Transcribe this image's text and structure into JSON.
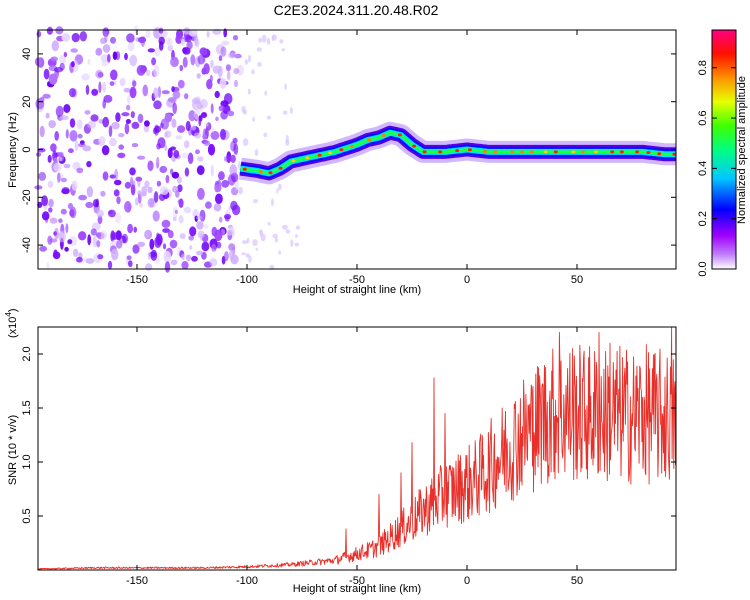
{
  "title": "C2E3.2024.311.20.48.R02",
  "chart_data": [
    {
      "type": "heatmap",
      "xlabel": "Height of straight line (km)",
      "ylabel": "Frequency (Hz)",
      "xlim": [
        -195,
        95
      ],
      "ylim": [
        -50,
        50
      ],
      "xticks": [
        -150,
        -100,
        -50,
        0,
        50
      ],
      "yticks": [
        -40,
        -20,
        0,
        20,
        40
      ],
      "xtick_labels": [
        "-150",
        "-100",
        "-50",
        "0",
        "50"
      ],
      "ytick_labels": [
        "-40",
        "-20",
        "0",
        "20",
        "40"
      ],
      "colorbar": {
        "label": "Normalized spectral amplitude",
        "range": [
          0,
          0.95
        ],
        "ticks": [
          0.0,
          0.2,
          0.4,
          0.6,
          0.8
        ],
        "tick_labels": [
          "0.0",
          "0.2",
          "0.4",
          "0.6",
          "0.8"
        ],
        "colormap": [
          "#ffffff",
          "#a000ff",
          "#0000ff",
          "#00ffff",
          "#00ff00",
          "#ffff00",
          "#ff8000",
          "#ff0000",
          "#ff0080"
        ]
      },
      "ridge": {
        "x": [
          -103,
          -95,
          -90,
          -85,
          -80,
          -70,
          -60,
          -50,
          -45,
          -40,
          -35,
          -30,
          -25,
          -20,
          -10,
          0,
          10,
          20,
          30,
          40,
          50,
          60,
          70,
          80,
          90,
          95
        ],
        "frequency": [
          -8,
          -9,
          -10,
          -8,
          -5,
          -3,
          -1,
          2,
          4,
          5,
          7,
          6,
          2,
          -1,
          -1,
          0,
          -1,
          -1,
          -1,
          -1,
          -1,
          -1,
          -1,
          -1,
          -2,
          -2
        ]
      },
      "noise_region": [
        -195,
        -103
      ]
    },
    {
      "type": "line",
      "xlabel": "Height of straight line (km)",
      "ylabel": "SNR (10 * v/v)",
      "multiplier_label": "(x10",
      "multiplier_exp": "4",
      "multiplier_close": ")",
      "xlim": [
        -195,
        95
      ],
      "ylim": [
        0,
        2.25
      ],
      "xticks": [
        -150,
        -100,
        -50,
        0,
        50
      ],
      "yticks": [
        0.5,
        1.0,
        1.5,
        2.0
      ],
      "xtick_labels": [
        "-150",
        "-100",
        "-50",
        "0",
        "50"
      ],
      "ytick_labels": [
        "0.5",
        "1.0",
        "1.5",
        "2.0"
      ],
      "color": "#e8302a",
      "series": [
        {
          "x": [
            -195,
            -170,
            -150,
            -120,
            -100,
            -90,
            -80,
            -70,
            -60,
            -55,
            -50,
            -45,
            -40,
            -35,
            -30,
            -25,
            -20,
            -15,
            -10,
            -5,
            0,
            5,
            10,
            15,
            20,
            25,
            30,
            35,
            40,
            45,
            50,
            55,
            60,
            65,
            70,
            75,
            80,
            85,
            90,
            95
          ],
          "values": [
            0.01,
            0.02,
            0.02,
            0.02,
            0.03,
            0.04,
            0.05,
            0.07,
            0.09,
            0.12,
            0.15,
            0.18,
            0.22,
            0.3,
            0.38,
            0.45,
            0.55,
            0.62,
            0.7,
            0.75,
            0.8,
            0.85,
            0.95,
            1.05,
            1.15,
            1.25,
            1.3,
            1.4,
            1.45,
            1.45,
            1.45,
            1.45,
            1.45,
            1.42,
            1.45,
            1.42,
            1.45,
            1.42,
            1.42,
            1.4
          ]
        }
      ],
      "spikes": [
        {
          "x": -55,
          "y": 0.38
        },
        {
          "x": -40,
          "y": 0.7
        },
        {
          "x": -30,
          "y": 0.9
        },
        {
          "x": -25,
          "y": 1.18
        },
        {
          "x": -15,
          "y": 1.78
        },
        {
          "x": -10,
          "y": 1.45
        },
        {
          "x": 30,
          "y": 1.7
        },
        {
          "x": 35,
          "y": 1.65
        },
        {
          "x": 42,
          "y": 2.2
        },
        {
          "x": 48,
          "y": 2.05
        },
        {
          "x": 60,
          "y": 2.2
        },
        {
          "x": 65,
          "y": 2.1
        },
        {
          "x": 93,
          "y": 2.25
        }
      ]
    }
  ]
}
